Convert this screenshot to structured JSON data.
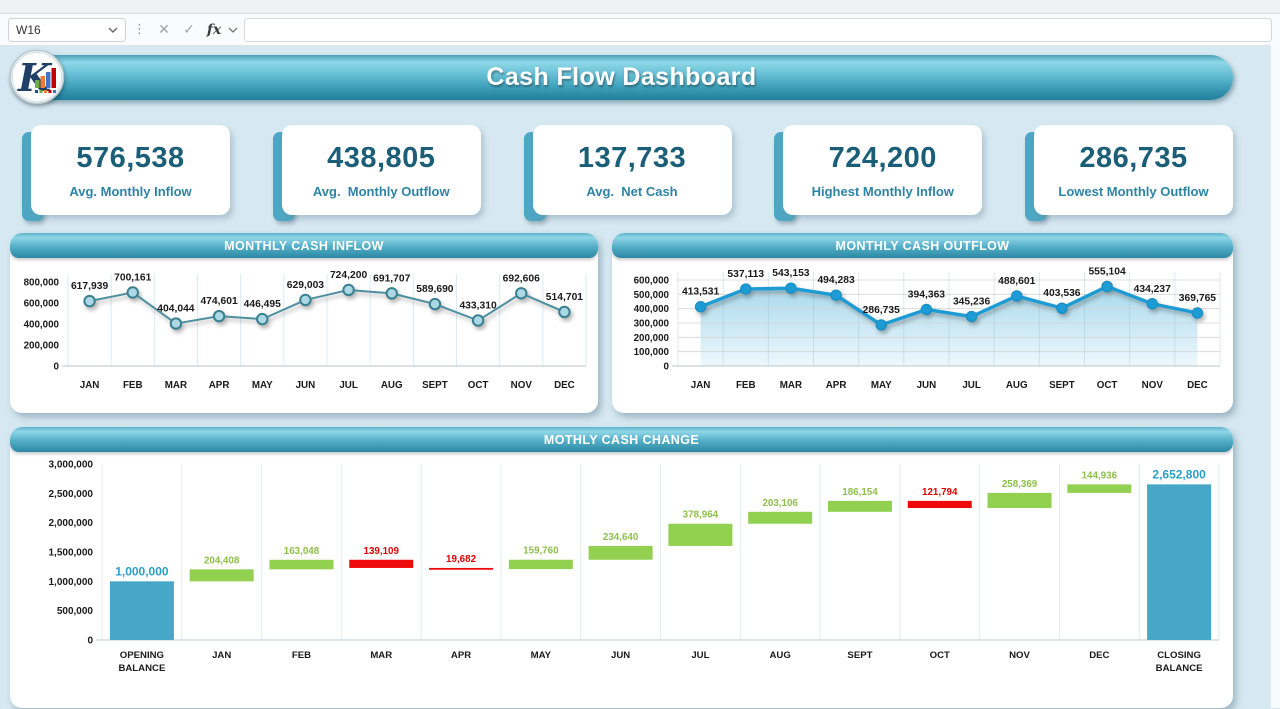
{
  "excel_bar": {
    "name_box": "W16",
    "formula_value": ""
  },
  "header": {
    "title": "Cash Flow Dashboard"
  },
  "theme": {
    "accent": "#4da7c4",
    "kpi_number_color": "#1b5e78",
    "kpi_label_color": "#2e84a5",
    "background": "#d6e8f1"
  },
  "kpi_cards": [
    {
      "value": "576,538",
      "label": "Avg. Monthly Inflow"
    },
    {
      "value": "438,805",
      "label": "Avg.  Monthly Outflow"
    },
    {
      "value": "137,733",
      "label": "Avg.  Net Cash"
    },
    {
      "value": "724,200",
      "label": "Highest Monthly Inflow"
    },
    {
      "value": "286,735",
      "label": "Lowest Monthly Outflow"
    }
  ],
  "chart_data": [
    {
      "type": "line",
      "title": "MONTHLY CASH INFLOW",
      "categories": [
        "JAN",
        "FEB",
        "MAR",
        "APR",
        "MAY",
        "JUN",
        "JUL",
        "AUG",
        "SEPT",
        "OCT",
        "NOV",
        "DEC"
      ],
      "values": [
        617939,
        700161,
        404044,
        474601,
        446495,
        629003,
        724200,
        691707,
        589690,
        433310,
        692606,
        514701
      ],
      "labels": [
        "617,939",
        "700,161",
        "404,044",
        "474,601",
        "446,495",
        "629,003",
        "724,200",
        "691,707",
        "589,690",
        "433,310",
        "692,606",
        "514,701"
      ],
      "ylim": [
        0,
        800000
      ],
      "ytick_values": [
        0,
        200000,
        400000,
        600000,
        800000
      ],
      "ytick_labels": [
        "0",
        "200,000",
        "400,000",
        "600,000",
        "800,000"
      ],
      "grid": "vertical",
      "legend": "none",
      "line_color": "#4e8fa0",
      "marker_fill": "#abd8e4",
      "marker_stroke": "#39808f"
    },
    {
      "type": "area",
      "title": "MONTHLY CASH OUTFLOW",
      "categories": [
        "JAN",
        "FEB",
        "MAR",
        "APR",
        "MAY",
        "JUN",
        "JUL",
        "AUG",
        "SEPT",
        "OCT",
        "NOV",
        "DEC"
      ],
      "values": [
        413531,
        537113,
        543153,
        494283,
        286735,
        394363,
        345236,
        488601,
        403536,
        555104,
        434237,
        369765
      ],
      "labels": [
        "413,531",
        "537,113",
        "543,153",
        "494,283",
        "286,735",
        "394,363",
        "345,236",
        "488,601",
        "403,536",
        "555,104",
        "434,237",
        "369,765"
      ],
      "ylim": [
        0,
        600000
      ],
      "ytick_values": [
        0,
        100000,
        200000,
        300000,
        400000,
        500000,
        600000
      ],
      "ytick_labels": [
        "0",
        "100,000",
        "200,000",
        "300,000",
        "400,000",
        "500,000",
        "600,000"
      ],
      "grid": "horizontal",
      "legend": "none",
      "line_color": "#1d9bd4",
      "marker_fill": "#1d9bd4",
      "marker_stroke": "#178bc0",
      "fill_gradient": [
        "#a8d8eb",
        "#eef8fd"
      ]
    },
    {
      "type": "waterfall",
      "title": "MOTHLY CASH CHANGE",
      "ylim": [
        0,
        3000000
      ],
      "ytick_values": [
        0,
        500000,
        1000000,
        1500000,
        2000000,
        2500000,
        3000000
      ],
      "ytick_labels": [
        "0",
        "500,000",
        "1,000,000",
        "1,500,000",
        "2,000,000",
        "2,500,000",
        "3,000,000"
      ],
      "grid": "vertical",
      "increase_color": "#92d050",
      "decrease_color": "#ee0a0a",
      "total_color": "#46a7c6",
      "increase_label_color": "#8fc04c",
      "decrease_label_color": "#e00000",
      "total_label_color": "#2aa0c8",
      "steps": [
        {
          "name": "OPENING BALANCE",
          "kind": "total",
          "value": 1000000,
          "label": "1,000,000"
        },
        {
          "name": "JAN",
          "kind": "increase",
          "value": 204408,
          "label": "204,408"
        },
        {
          "name": "FEB",
          "kind": "increase",
          "value": 163048,
          "label": "163,048"
        },
        {
          "name": "MAR",
          "kind": "decrease",
          "value": 139109,
          "label": "139,109"
        },
        {
          "name": "APR",
          "kind": "decrease",
          "value": 19682,
          "label": "19,682"
        },
        {
          "name": "MAY",
          "kind": "increase",
          "value": 159760,
          "label": "159,760"
        },
        {
          "name": "JUN",
          "kind": "increase",
          "value": 234640,
          "label": "234,640"
        },
        {
          "name": "JUL",
          "kind": "increase",
          "value": 378964,
          "label": "378,964"
        },
        {
          "name": "AUG",
          "kind": "increase",
          "value": 203106,
          "label": "203,106"
        },
        {
          "name": "SEPT",
          "kind": "increase",
          "value": 186154,
          "label": "186,154"
        },
        {
          "name": "OCT",
          "kind": "decrease",
          "value": 121794,
          "label": "121,794"
        },
        {
          "name": "NOV",
          "kind": "increase",
          "value": 258369,
          "label": "258,369"
        },
        {
          "name": "DEC",
          "kind": "increase",
          "value": 144936,
          "label": "144,936"
        },
        {
          "name": "CLOSING BALANCE",
          "kind": "total",
          "value": 2652800,
          "label": "2,652,800"
        }
      ]
    }
  ]
}
